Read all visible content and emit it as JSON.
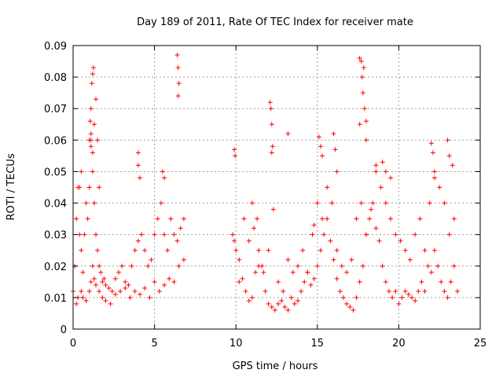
{
  "chart_data": {
    "type": "scatter",
    "title": "Day 189 of 2011, Rate Of TEC Index for receiver mate",
    "xlabel": "GPS time / hours",
    "ylabel": "ROTI / TECUs",
    "xlim": [
      0,
      25
    ],
    "ylim": [
      0,
      0.09
    ],
    "xticks": [
      0,
      5,
      10,
      15,
      20,
      25
    ],
    "xtick_labels": [
      "0",
      "5",
      "10",
      "15",
      "20",
      "25"
    ],
    "yticks": [
      0,
      0.01,
      0.02,
      0.03,
      0.04,
      0.05,
      0.06,
      0.07,
      0.08,
      0.09
    ],
    "ytick_labels": [
      "0",
      "0.01",
      "0.02",
      "0.03",
      "0.04",
      "0.05",
      "0.06",
      "0.07",
      "0.08",
      "0.09"
    ],
    "grid": true,
    "marker": "+",
    "color": "#ff0000",
    "series": [
      {
        "x": [
          0.0,
          0.1,
          0.2,
          0.3,
          0.4,
          0.5,
          0.6,
          0.7,
          0.8,
          0.9,
          1.0,
          1.1,
          1.2,
          1.3,
          1.4,
          1.5,
          1.6,
          1.7,
          1.8,
          1.9,
          2.0,
          2.2,
          2.4,
          2.6,
          2.8,
          3.0,
          3.2,
          3.4,
          3.6,
          3.8,
          4.0,
          4.2,
          4.4,
          4.6,
          4.8,
          5.0,
          5.2,
          5.4,
          5.6,
          5.8,
          6.0,
          6.2,
          6.4,
          6.6,
          6.8,
          0.2,
          0.3,
          0.5,
          0.6,
          0.8,
          1.0,
          1.1,
          1.2,
          1.3,
          1.4,
          1.6,
          1.8,
          2.0,
          2.3,
          2.6,
          2.9,
          3.2,
          3.5,
          3.8,
          4.1,
          4.4,
          4.7,
          5.0,
          5.3,
          5.6,
          5.9,
          6.2,
          6.5,
          6.8,
          1.05,
          1.1,
          1.15,
          1.2,
          1.25,
          1.3,
          1.1,
          1.2,
          1.4,
          1.5,
          1.6,
          4.0,
          4.0,
          4.1,
          5.5,
          5.6,
          6.4,
          6.45,
          6.5,
          6.45,
          1.0,
          1.1,
          0.5,
          0.4,
          9.8,
          9.9,
          10.0,
          10.2,
          10.4,
          10.6,
          10.8,
          11.0,
          11.2,
          11.4,
          11.6,
          11.8,
          12.0,
          12.2,
          12.4,
          12.6,
          12.8,
          13.0,
          13.2,
          13.4,
          13.6,
          13.8,
          14.0,
          14.2,
          14.4,
          14.6,
          14.8,
          15.0,
          15.2,
          15.4,
          15.6,
          15.8,
          16.0,
          16.2,
          16.4,
          16.6,
          16.8,
          17.0,
          17.2,
          17.4,
          17.6,
          17.8,
          18.0,
          18.2,
          18.4,
          18.6,
          18.8,
          19.0,
          19.2,
          19.4,
          19.6,
          19.8,
          20.0,
          20.2,
          20.4,
          20.6,
          20.8,
          21.0,
          21.2,
          21.4,
          21.6,
          21.8,
          22.0,
          22.2,
          22.4,
          22.6,
          22.8,
          23.0,
          23.2,
          23.4,
          23.6,
          10.2,
          10.5,
          10.8,
          11.1,
          11.4,
          11.7,
          12.0,
          12.3,
          12.6,
          12.9,
          13.2,
          13.5,
          13.8,
          14.1,
          14.4,
          14.7,
          15.0,
          15.3,
          15.6,
          15.9,
          16.2,
          16.5,
          16.8,
          17.1,
          17.4,
          17.7,
          18.0,
          18.3,
          18.6,
          18.9,
          19.2,
          19.5,
          19.8,
          20.1,
          20.4,
          20.7,
          21.0,
          21.3,
          21.6,
          21.9,
          22.2,
          22.5,
          22.8,
          23.1,
          23.4,
          12.1,
          12.15,
          12.2,
          12.25,
          12.2,
          13.2,
          15.1,
          15.2,
          15.3,
          16.0,
          16.2,
          17.6,
          17.7,
          17.75,
          17.8,
          17.85,
          17.9,
          18.0,
          17.6,
          18.0,
          19.0,
          19.2,
          19.5,
          22.0,
          22.1,
          22.2,
          23.0,
          23.1,
          23.3,
          9.9,
          9.95,
          11.0,
          11.3,
          14.8,
          16.1,
          18.6
        ],
        "y": [
          0.012,
          0.02,
          0.035,
          0.045,
          0.03,
          0.025,
          0.018,
          0.03,
          0.04,
          0.035,
          0.045,
          0.06,
          0.05,
          0.04,
          0.03,
          0.025,
          0.02,
          0.018,
          0.015,
          0.016,
          0.014,
          0.013,
          0.012,
          0.016,
          0.018,
          0.02,
          0.015,
          0.014,
          0.02,
          0.025,
          0.028,
          0.03,
          0.025,
          0.02,
          0.022,
          0.03,
          0.035,
          0.04,
          0.03,
          0.025,
          0.035,
          0.03,
          0.028,
          0.032,
          0.035,
          0.008,
          0.01,
          0.012,
          0.01,
          0.009,
          0.012,
          0.015,
          0.02,
          0.016,
          0.014,
          0.012,
          0.01,
          0.009,
          0.008,
          0.011,
          0.012,
          0.013,
          0.01,
          0.012,
          0.011,
          0.013,
          0.01,
          0.015,
          0.012,
          0.014,
          0.016,
          0.015,
          0.02,
          0.022,
          0.066,
          0.07,
          0.078,
          0.081,
          0.083,
          0.065,
          0.058,
          0.056,
          0.073,
          0.06,
          0.045,
          0.056,
          0.052,
          0.048,
          0.05,
          0.048,
          0.087,
          0.083,
          0.078,
          0.074,
          0.06,
          0.062,
          0.05,
          0.045,
          0.03,
          0.028,
          0.025,
          0.022,
          0.016,
          0.012,
          0.009,
          0.01,
          0.018,
          0.025,
          0.02,
          0.012,
          0.008,
          0.007,
          0.006,
          0.008,
          0.009,
          0.007,
          0.006,
          0.01,
          0.008,
          0.009,
          0.012,
          0.015,
          0.018,
          0.014,
          0.016,
          0.02,
          0.025,
          0.03,
          0.035,
          0.028,
          0.022,
          0.016,
          0.012,
          0.01,
          0.008,
          0.007,
          0.006,
          0.01,
          0.015,
          0.02,
          0.03,
          0.035,
          0.04,
          0.032,
          0.028,
          0.02,
          0.015,
          0.012,
          0.01,
          0.012,
          0.008,
          0.01,
          0.012,
          0.011,
          0.01,
          0.009,
          0.012,
          0.015,
          0.012,
          0.02,
          0.018,
          0.025,
          0.02,
          0.015,
          0.012,
          0.01,
          0.015,
          0.02,
          0.012,
          0.015,
          0.035,
          0.028,
          0.032,
          0.02,
          0.018,
          0.025,
          0.038,
          0.015,
          0.012,
          0.022,
          0.018,
          0.02,
          0.025,
          0.018,
          0.03,
          0.04,
          0.035,
          0.045,
          0.04,
          0.025,
          0.02,
          0.018,
          0.022,
          0.035,
          0.04,
          0.03,
          0.038,
          0.05,
          0.045,
          0.04,
          0.035,
          0.03,
          0.028,
          0.025,
          0.022,
          0.03,
          0.035,
          0.025,
          0.04,
          0.048,
          0.045,
          0.04,
          0.03,
          0.035,
          0.072,
          0.07,
          0.065,
          0.058,
          0.056,
          0.062,
          0.061,
          0.058,
          0.055,
          0.062,
          0.05,
          0.086,
          0.085,
          0.08,
          0.075,
          0.083,
          0.07,
          0.066,
          0.065,
          0.06,
          0.053,
          0.05,
          0.048,
          0.059,
          0.056,
          0.05,
          0.06,
          0.055,
          0.052,
          0.057,
          0.055,
          0.04,
          0.035,
          0.033,
          0.057,
          0.052
        ]
      }
    ]
  }
}
